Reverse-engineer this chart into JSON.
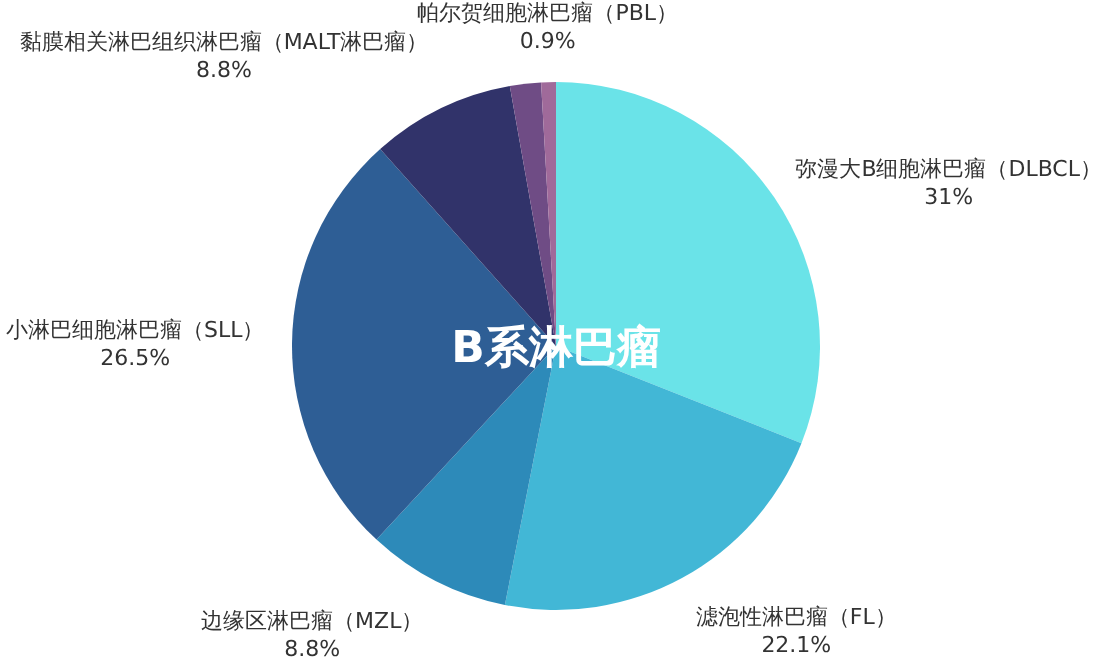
{
  "chart_data": {
    "type": "pie",
    "title": "B系淋巴瘤",
    "categories": [
      "弥漫大B细胞淋巴瘤（DLBCL）",
      "滤泡性淋巴瘤（FL）",
      "边缘区淋巴瘤（MZL）",
      "小淋巴细胞淋巴瘤（SLL）",
      "黏膜相关淋巴组织淋巴瘤（MALT淋巴瘤）",
      null,
      "帕尔贺细胞淋巴瘤（PBL）"
    ],
    "values": [
      31,
      22.1,
      8.8,
      26.5,
      8.8,
      1.9,
      0.9
    ],
    "value_labels": [
      "31%",
      "22.1%",
      "8.8%",
      "26.5%",
      "8.8%",
      null,
      "0.9%"
    ],
    "colors": [
      "#6ae3e8",
      "#42b7d6",
      "#2d8ab9",
      "#2e5e95",
      "#31336a",
      "#6f4c85",
      "#a06a9a"
    ]
  }
}
